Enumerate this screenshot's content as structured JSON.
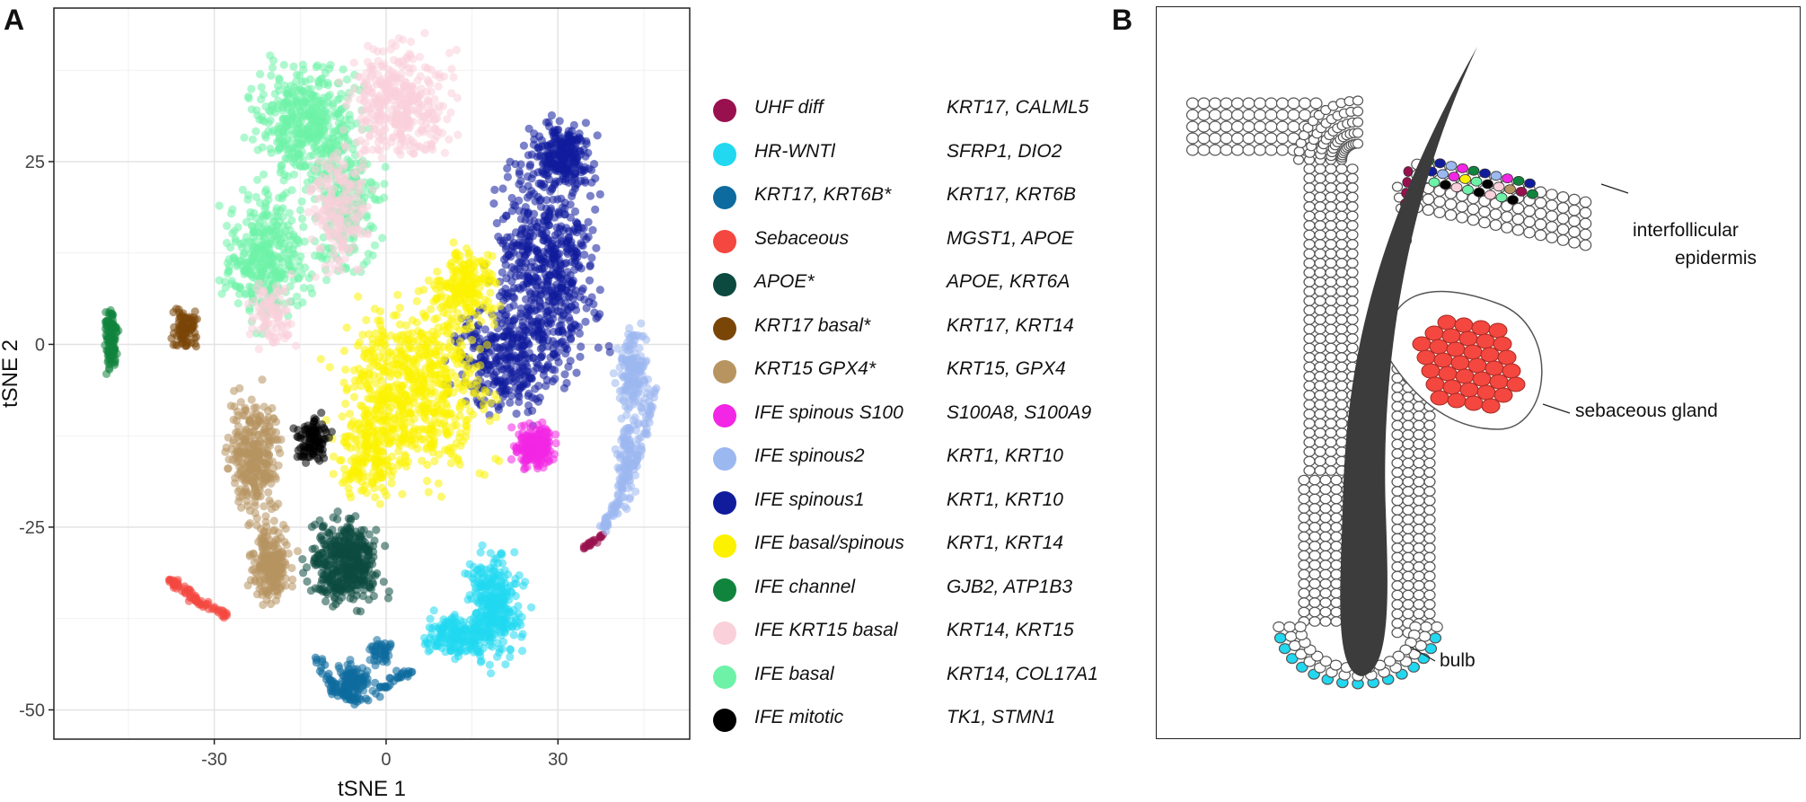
{
  "panelA": {
    "letter": "A",
    "chart_data": {
      "type": "scatter",
      "xlabel": "tSNE 1",
      "ylabel": "tSNE 2",
      "xlim": [
        -58,
        53
      ],
      "ylim": [
        -54,
        46
      ],
      "xticks": [
        -30,
        0,
        30
      ],
      "yticks": [
        25,
        0,
        -25,
        -50
      ],
      "xtick_labels": [
        "-30",
        "0",
        "30"
      ],
      "ytick_labels": [
        "25",
        "0",
        "-25",
        "-50"
      ],
      "grid": true,
      "legend": "right",
      "series": [
        {
          "name": "UHF diff",
          "genes": "KRT17, CALML5",
          "color": "#99104F"
        },
        {
          "name": "HR-WNTl",
          "genes": "SFRP1, DIO2",
          "color": "#21D8F0"
        },
        {
          "name": "KRT17, KRT6B*",
          "genes": "KRT17, KRT6B",
          "color": "#0E6B9F"
        },
        {
          "name": "Sebaceous",
          "genes": "MGST1, APOE",
          "color": "#F4473F"
        },
        {
          "name": "APOE*",
          "genes": "APOE, KRT6A",
          "color": "#0C4A3F"
        },
        {
          "name": "KRT17 basal*",
          "genes": "KRT17, KRT14",
          "color": "#7A4608"
        },
        {
          "name": "KRT15 GPX4*",
          "genes": "KRT15, GPX4",
          "color": "#B79460"
        },
        {
          "name": "IFE spinous S100",
          "genes": "S100A8, S100A9",
          "color": "#F226E4"
        },
        {
          "name": "IFE spinous2",
          "genes": "KRT1, KRT10",
          "color": "#9CB8F0"
        },
        {
          "name": "IFE spinous1",
          "genes": "KRT1, KRT10",
          "color": "#111C9C"
        },
        {
          "name": "IFE basal/spinous",
          "genes": "KRT1, KRT14",
          "color": "#FCF200"
        },
        {
          "name": "IFE channel",
          "genes": "GJB2, ATP1B3",
          "color": "#10843C"
        },
        {
          "name": "IFE KRT15 basal",
          "genes": "KRT14, KRT15",
          "color": "#FAD0DA"
        },
        {
          "name": "IFE basal",
          "genes": "KRT14, COL17A1",
          "color": "#6EF2A8"
        },
        {
          "name": "IFE mitotic",
          "genes": "TK1, STMN1",
          "color": "#000000"
        }
      ]
    }
  },
  "panelB": {
    "letter": "B",
    "labels": {
      "ife_line1": "interfollicular",
      "ife_line2": "epidermis",
      "gland": "sebaceous gland",
      "bulb": "bulb"
    },
    "colors": {
      "hair_shaft": "#3c3c3c",
      "gland_cells": "#F4473F",
      "bulb_cells": "#21D8F0",
      "cell_outline": "#555555"
    }
  }
}
